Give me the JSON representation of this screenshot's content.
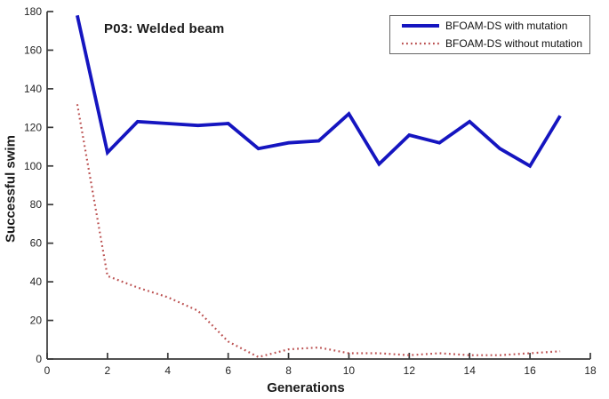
{
  "figure": {
    "background": "#ffffff"
  },
  "chart_data": {
    "type": "line",
    "title": "P03: Welded beam",
    "xlabel": "Generations",
    "ylabel": "Successful swim",
    "x": [
      1,
      2,
      3,
      4,
      5,
      6,
      7,
      8,
      9,
      10,
      11,
      12,
      13,
      14,
      15,
      16,
      17
    ],
    "series": [
      {
        "name": "BFOAM-DS with mutation",
        "style": "solid",
        "color": "#1515c0",
        "values": [
          178,
          107,
          123,
          122,
          121,
          122,
          109,
          112,
          113,
          127,
          101,
          116,
          112,
          123,
          109,
          100,
          126
        ]
      },
      {
        "name": "BFOAM-DS without mutation",
        "style": "dotted",
        "color": "#bb5050",
        "values": [
          132,
          43,
          37,
          32,
          25,
          9,
          1,
          5,
          6,
          3,
          3,
          2,
          3,
          2,
          2,
          3,
          4
        ]
      }
    ],
    "xlim": [
      0,
      18
    ],
    "ylim": [
      0,
      180
    ],
    "xticks": [
      0,
      2,
      4,
      6,
      8,
      10,
      12,
      14,
      16,
      18
    ],
    "yticks": [
      0,
      20,
      40,
      60,
      80,
      100,
      120,
      140,
      160,
      180
    ],
    "grid": false,
    "legend_position": "top-right",
    "axis_color": "#383838"
  }
}
